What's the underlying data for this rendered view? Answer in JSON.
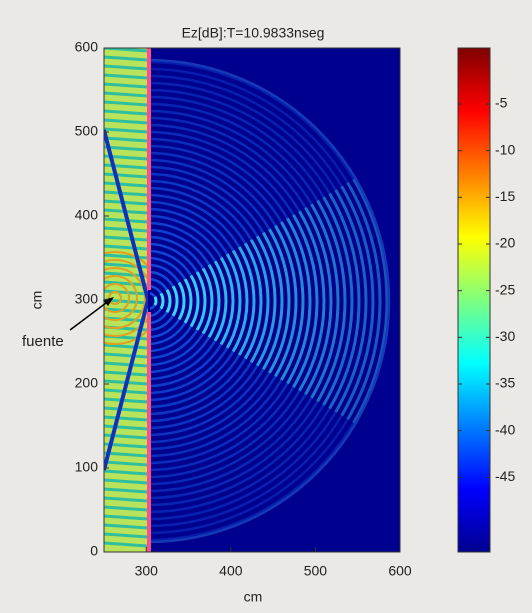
{
  "chart_data": {
    "type": "heatmap",
    "title": "Ez[dB]:T=10.9833nseg",
    "xlabel": "cm",
    "ylabel": "cm",
    "xlim": [
      250,
      600
    ],
    "ylim": [
      0,
      600
    ],
    "xticks": [
      300,
      400,
      500,
      600
    ],
    "yticks": [
      0,
      100,
      200,
      300,
      400,
      500,
      600
    ],
    "colorbar": {
      "lim": [
        -53,
        1
      ],
      "ticks": [
        -5,
        -10,
        -15,
        -20,
        -25,
        -30,
        -35,
        -40,
        -45
      ],
      "colormap": "jet"
    },
    "annotation": "fuente"
  }
}
